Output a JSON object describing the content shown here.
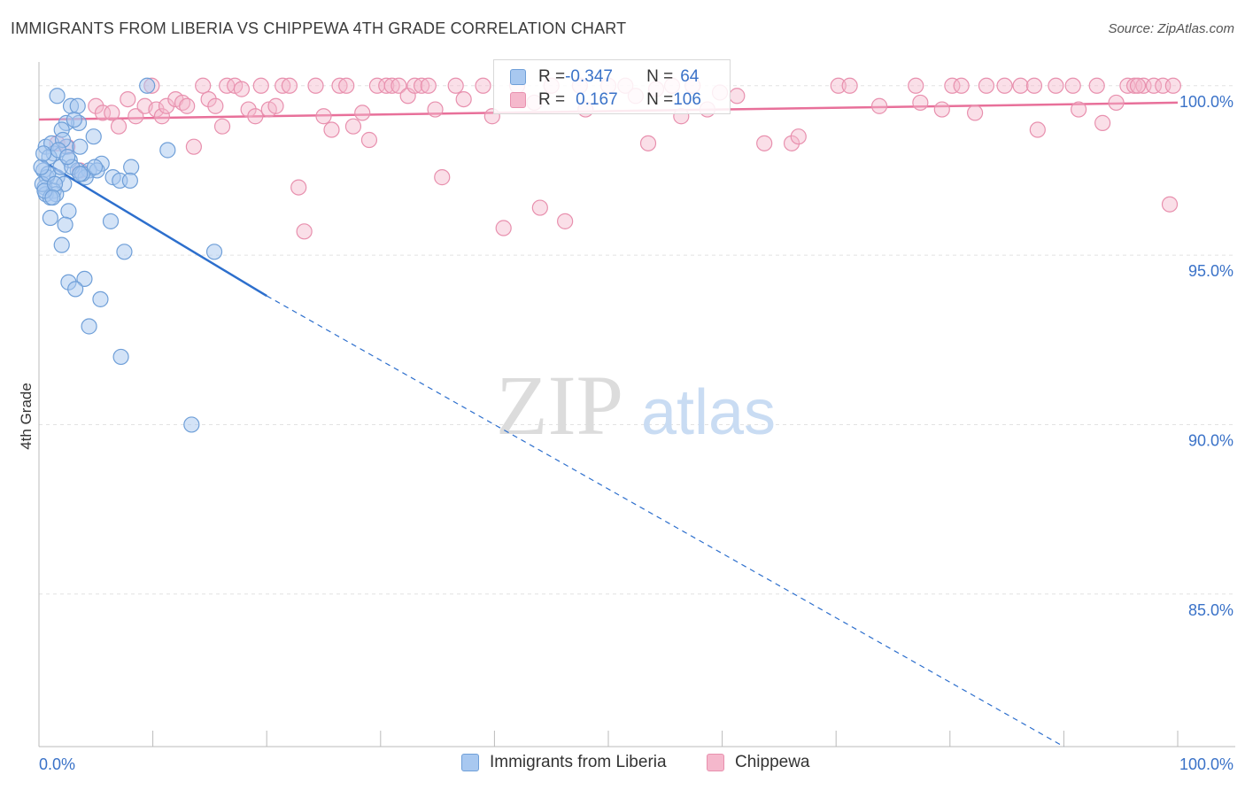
{
  "title": "IMMIGRANTS FROM LIBERIA VS CHIPPEWA 4TH GRADE CORRELATION CHART",
  "source": "Source: ZipAtlas.com",
  "watermark": {
    "zip": "ZIP",
    "atlas": "atlas"
  },
  "stats": {
    "row1": {
      "r_label": "R = ",
      "r_value": "-0.347",
      "n_label": "N = ",
      "n_value": "64"
    },
    "row2": {
      "r_label": "R = ",
      "r_value": "0.167",
      "n_label": "N = ",
      "n_value": "106"
    }
  },
  "legend": {
    "series1": "Immigrants from Liberia",
    "series2": "Chippewa"
  },
  "colors": {
    "series1_fill": "#a8c8f0",
    "series1_stroke": "#6f9fd8",
    "series1_line": "#2d6fcd",
    "series2_fill": "#f5b8cc",
    "series2_stroke": "#e890ae",
    "series2_line": "#e8709a",
    "axis_label": "#3a72c8",
    "grid": "#e2e2e2"
  },
  "chart_data": {
    "type": "scatter",
    "ylabel": "4th Grade",
    "xlim": [
      0,
      100
    ],
    "ylim": [
      80.5,
      100.7
    ],
    "x_tick_labels": [
      {
        "value": 0,
        "label": "0.0%"
      },
      {
        "value": 100,
        "label": "100.0%"
      }
    ],
    "y_tick_labels": [
      {
        "value": 100,
        "label": "100.0%"
      },
      {
        "value": 95,
        "label": "95.0%"
      },
      {
        "value": 90,
        "label": "90.0%"
      },
      {
        "value": 85,
        "label": "85.0%"
      }
    ],
    "series": [
      {
        "name": "Immigrants from Liberia",
        "r": -0.347,
        "n": 64,
        "trend": {
          "x0": 0.2,
          "y0": 97.8,
          "x1": 20,
          "y1": 93.8,
          "dash_x1": 90,
          "dash_y1": 80.5
        },
        "points": [
          [
            1.6,
            99.7
          ],
          [
            2.8,
            99.4
          ],
          [
            3.4,
            99.4
          ],
          [
            9.5,
            100.0
          ],
          [
            3.5,
            98.9
          ],
          [
            2.4,
            98.9
          ],
          [
            2.0,
            98.7
          ],
          [
            4.8,
            98.5
          ],
          [
            0.6,
            98.2
          ],
          [
            2.4,
            98.2
          ],
          [
            3.6,
            98.2
          ],
          [
            1.3,
            98.0
          ],
          [
            11.3,
            98.1
          ],
          [
            0.9,
            97.9
          ],
          [
            2.7,
            97.8
          ],
          [
            5.5,
            97.7
          ],
          [
            8.1,
            97.6
          ],
          [
            0.4,
            97.5
          ],
          [
            3.4,
            97.5
          ],
          [
            4.4,
            97.5
          ],
          [
            5.1,
            97.5
          ],
          [
            0.7,
            97.3
          ],
          [
            1.6,
            97.3
          ],
          [
            4.1,
            97.3
          ],
          [
            6.5,
            97.3
          ],
          [
            7.1,
            97.2
          ],
          [
            8.0,
            97.2
          ],
          [
            2.2,
            97.1
          ],
          [
            0.5,
            97.0
          ],
          [
            1.3,
            96.9
          ],
          [
            0.6,
            96.8
          ],
          [
            1.5,
            96.8
          ],
          [
            1.0,
            96.7
          ],
          [
            2.6,
            96.3
          ],
          [
            1.0,
            96.1
          ],
          [
            6.3,
            96.0
          ],
          [
            2.3,
            95.9
          ],
          [
            2.0,
            95.3
          ],
          [
            7.5,
            95.1
          ],
          [
            15.4,
            95.1
          ],
          [
            4.0,
            94.3
          ],
          [
            2.6,
            94.2
          ],
          [
            3.2,
            94.0
          ],
          [
            5.4,
            93.7
          ],
          [
            4.4,
            92.9
          ],
          [
            7.2,
            92.0
          ],
          [
            13.4,
            90.0
          ],
          [
            0.3,
            97.1
          ],
          [
            0.8,
            97.4
          ],
          [
            1.1,
            98.3
          ],
          [
            1.9,
            97.6
          ],
          [
            2.9,
            97.6
          ],
          [
            3.8,
            97.4
          ],
          [
            0.5,
            96.9
          ],
          [
            1.4,
            97.1
          ],
          [
            2.1,
            98.4
          ],
          [
            3.1,
            99.0
          ],
          [
            0.2,
            97.6
          ],
          [
            1.7,
            98.1
          ],
          [
            4.9,
            97.6
          ],
          [
            0.4,
            98.0
          ],
          [
            1.2,
            96.7
          ],
          [
            2.5,
            97.9
          ],
          [
            3.6,
            97.4
          ]
        ]
      },
      {
        "name": "Chippewa",
        "r": 0.167,
        "n": 106,
        "trend": {
          "x0": 0,
          "y0": 99.0,
          "x1": 100,
          "y1": 99.5
        },
        "points": [
          [
            1.6,
            98.3
          ],
          [
            2.5,
            98.2
          ],
          [
            3.6,
            97.5
          ],
          [
            5.0,
            99.4
          ],
          [
            5.6,
            99.2
          ],
          [
            6.4,
            99.2
          ],
          [
            7.0,
            98.8
          ],
          [
            7.8,
            99.6
          ],
          [
            8.5,
            99.1
          ],
          [
            9.3,
            99.4
          ],
          [
            9.9,
            100.0
          ],
          [
            10.3,
            99.3
          ],
          [
            10.8,
            99.1
          ],
          [
            11.2,
            99.4
          ],
          [
            12.0,
            99.6
          ],
          [
            12.6,
            99.5
          ],
          [
            13.0,
            99.4
          ],
          [
            13.6,
            98.2
          ],
          [
            14.4,
            100.0
          ],
          [
            14.9,
            99.6
          ],
          [
            15.5,
            99.4
          ],
          [
            16.1,
            98.8
          ],
          [
            16.5,
            100.0
          ],
          [
            17.2,
            100.0
          ],
          [
            17.8,
            99.9
          ],
          [
            18.4,
            99.3
          ],
          [
            19.0,
            99.1
          ],
          [
            19.5,
            100.0
          ],
          [
            20.2,
            99.3
          ],
          [
            20.8,
            99.4
          ],
          [
            21.4,
            100.0
          ],
          [
            22.0,
            100.0
          ],
          [
            22.8,
            97.0
          ],
          [
            23.3,
            95.7
          ],
          [
            24.3,
            100.0
          ],
          [
            25.0,
            99.1
          ],
          [
            25.7,
            98.7
          ],
          [
            26.4,
            100.0
          ],
          [
            27.0,
            100.0
          ],
          [
            27.6,
            98.8
          ],
          [
            28.4,
            99.2
          ],
          [
            29.0,
            98.4
          ],
          [
            29.7,
            100.0
          ],
          [
            30.5,
            100.0
          ],
          [
            31.0,
            100.0
          ],
          [
            31.6,
            100.0
          ],
          [
            32.4,
            99.7
          ],
          [
            33.0,
            100.0
          ],
          [
            33.6,
            100.0
          ],
          [
            34.2,
            100.0
          ],
          [
            34.8,
            99.3
          ],
          [
            35.4,
            97.3
          ],
          [
            36.6,
            100.0
          ],
          [
            37.3,
            99.6
          ],
          [
            39.0,
            100.0
          ],
          [
            39.8,
            99.1
          ],
          [
            40.8,
            95.8
          ],
          [
            42.0,
            100.0
          ],
          [
            43.5,
            99.5
          ],
          [
            44.0,
            96.4
          ],
          [
            45.0,
            100.0
          ],
          [
            46.2,
            96.0
          ],
          [
            47.5,
            100.0
          ],
          [
            48.0,
            99.3
          ],
          [
            50.0,
            100.0
          ],
          [
            51.5,
            100.0
          ],
          [
            52.4,
            99.7
          ],
          [
            53.5,
            98.3
          ],
          [
            54.2,
            99.9
          ],
          [
            55.6,
            100.0
          ],
          [
            56.4,
            99.1
          ],
          [
            57.4,
            100.0
          ],
          [
            58.7,
            99.3
          ],
          [
            59.8,
            99.8
          ],
          [
            61.3,
            99.7
          ],
          [
            63.7,
            98.3
          ],
          [
            66.1,
            98.3
          ],
          [
            66.7,
            98.5
          ],
          [
            70.2,
            100.0
          ],
          [
            71.2,
            100.0
          ],
          [
            73.8,
            99.4
          ],
          [
            77.0,
            100.0
          ],
          [
            77.4,
            99.5
          ],
          [
            79.3,
            99.3
          ],
          [
            80.2,
            100.0
          ],
          [
            81.0,
            100.0
          ],
          [
            82.2,
            99.2
          ],
          [
            83.2,
            100.0
          ],
          [
            84.8,
            100.0
          ],
          [
            86.2,
            100.0
          ],
          [
            87.4,
            100.0
          ],
          [
            87.7,
            98.7
          ],
          [
            89.3,
            100.0
          ],
          [
            90.8,
            100.0
          ],
          [
            91.3,
            99.3
          ],
          [
            92.9,
            100.0
          ],
          [
            93.4,
            98.9
          ],
          [
            94.6,
            99.5
          ],
          [
            95.6,
            100.0
          ],
          [
            96.2,
            100.0
          ],
          [
            97.0,
            100.0
          ],
          [
            97.9,
            100.0
          ],
          [
            98.7,
            100.0
          ],
          [
            99.3,
            96.5
          ],
          [
            99.6,
            100.0
          ],
          [
            96.5,
            100.0
          ]
        ]
      }
    ]
  }
}
